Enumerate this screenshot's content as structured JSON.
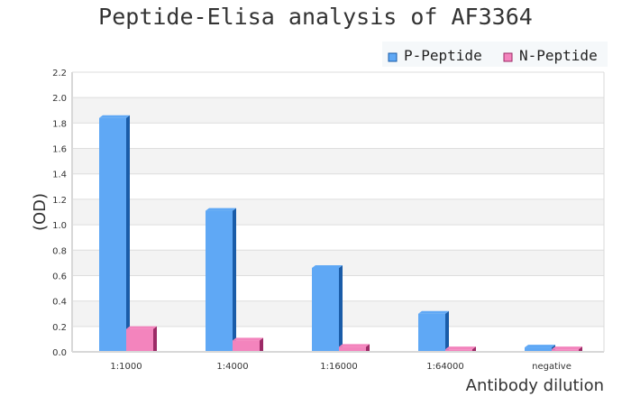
{
  "chart_data": {
    "type": "bar",
    "title": "Peptide-Elisa analysis of AF3364",
    "xlabel": "Antibody dilution",
    "ylabel": "(OD)",
    "categories": [
      "1:1000",
      "1:4000",
      "1:16000",
      "1:64000",
      "negative"
    ],
    "series": [
      {
        "name": "P-Peptide",
        "values": [
          1.84,
          1.11,
          0.66,
          0.3,
          0.035
        ],
        "color": "#5fa8f5",
        "side_color": "#1a5ca8"
      },
      {
        "name": "N-Peptide",
        "values": [
          0.18,
          0.09,
          0.04,
          0.02,
          0.02
        ],
        "color": "#f384bd",
        "side_color": "#9c2a66"
      }
    ],
    "ylim": [
      0,
      2.2
    ],
    "yticks": [
      "0.0",
      "0.2",
      "0.4",
      "0.6",
      "0.8",
      "1.0",
      "1.2",
      "1.4",
      "1.6",
      "1.8",
      "2.0",
      "2.2"
    ],
    "grid": true,
    "legend": "top-right"
  }
}
